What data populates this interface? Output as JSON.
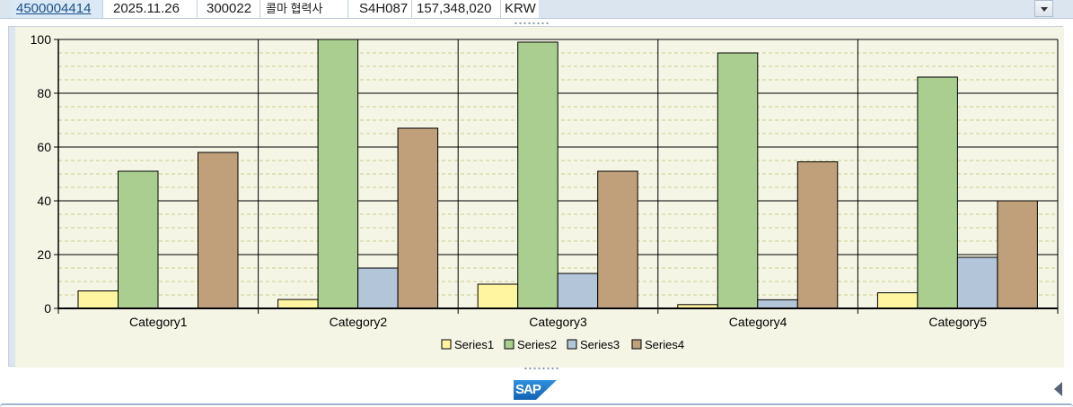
{
  "record": {
    "doc_number": "4500004414",
    "date": "2025.11.26",
    "vendor_code": "300022",
    "vendor_name": "콜마 협력사",
    "plant": "S4H087",
    "amount": "157,348,020",
    "currency": "KRW"
  },
  "logo": {
    "text": "SAP"
  },
  "colors": {
    "Series1": "#fff5a0",
    "Series2": "#aace8f",
    "Series3": "#b3c5d8",
    "Series4": "#bfa07a",
    "plot_bg": "#f5f5e6"
  },
  "chart_data": {
    "type": "bar",
    "title": "",
    "xlabel": "",
    "ylabel": "",
    "ylim": [
      0,
      100
    ],
    "yticks": [
      0,
      20,
      40,
      60,
      80,
      100
    ],
    "grid": true,
    "legend_position": "bottom",
    "categories": [
      "Category1",
      "Category2",
      "Category3",
      "Category4",
      "Category5"
    ],
    "series": [
      {
        "name": "Series1",
        "values": [
          6.5,
          3.3,
          9,
          1.4,
          5.8
        ]
      },
      {
        "name": "Series2",
        "values": [
          51,
          100,
          99,
          95,
          86
        ]
      },
      {
        "name": "Series3",
        "values": [
          0,
          15,
          13,
          3.2,
          19
        ]
      },
      {
        "name": "Series4",
        "values": [
          58,
          67,
          51,
          54.5,
          40
        ]
      }
    ]
  }
}
